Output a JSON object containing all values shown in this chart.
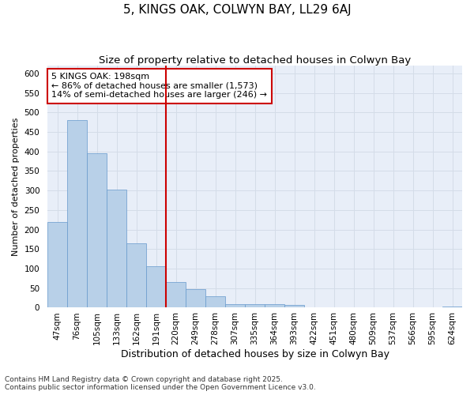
{
  "title": "5, KINGS OAK, COLWYN BAY, LL29 6AJ",
  "subtitle": "Size of property relative to detached houses in Colwyn Bay",
  "xlabel": "Distribution of detached houses by size in Colwyn Bay",
  "ylabel": "Number of detached properties",
  "categories": [
    "47sqm",
    "76sqm",
    "105sqm",
    "133sqm",
    "162sqm",
    "191sqm",
    "220sqm",
    "249sqm",
    "278sqm",
    "307sqm",
    "335sqm",
    "364sqm",
    "393sqm",
    "422sqm",
    "451sqm",
    "480sqm",
    "509sqm",
    "537sqm",
    "566sqm",
    "595sqm",
    "624sqm"
  ],
  "values": [
    220,
    480,
    395,
    302,
    165,
    106,
    65,
    47,
    30,
    10,
    10,
    10,
    8,
    0,
    0,
    0,
    0,
    0,
    0,
    0,
    2
  ],
  "bar_color": "#b8d0e8",
  "bar_edge_color": "#6699cc",
  "vline_color": "#cc0000",
  "vline_x": 5.5,
  "annotation_text": "5 KINGS OAK: 198sqm\n← 86% of detached houses are smaller (1,573)\n14% of semi-detached houses are larger (246) →",
  "annotation_box_facecolor": "#ffffff",
  "annotation_box_edgecolor": "#cc0000",
  "grid_color": "#d4dce8",
  "plot_bg_color": "#e8eef8",
  "fig_bg_color": "#ffffff",
  "ylim": [
    0,
    620
  ],
  "yticks": [
    0,
    50,
    100,
    150,
    200,
    250,
    300,
    350,
    400,
    450,
    500,
    550,
    600
  ],
  "footnote": "Contains HM Land Registry data © Crown copyright and database right 2025.\nContains public sector information licensed under the Open Government Licence v3.0.",
  "title_fontsize": 11,
  "subtitle_fontsize": 9.5,
  "xlabel_fontsize": 9,
  "ylabel_fontsize": 8,
  "tick_fontsize": 7.5,
  "annotation_fontsize": 8,
  "footnote_fontsize": 6.5
}
